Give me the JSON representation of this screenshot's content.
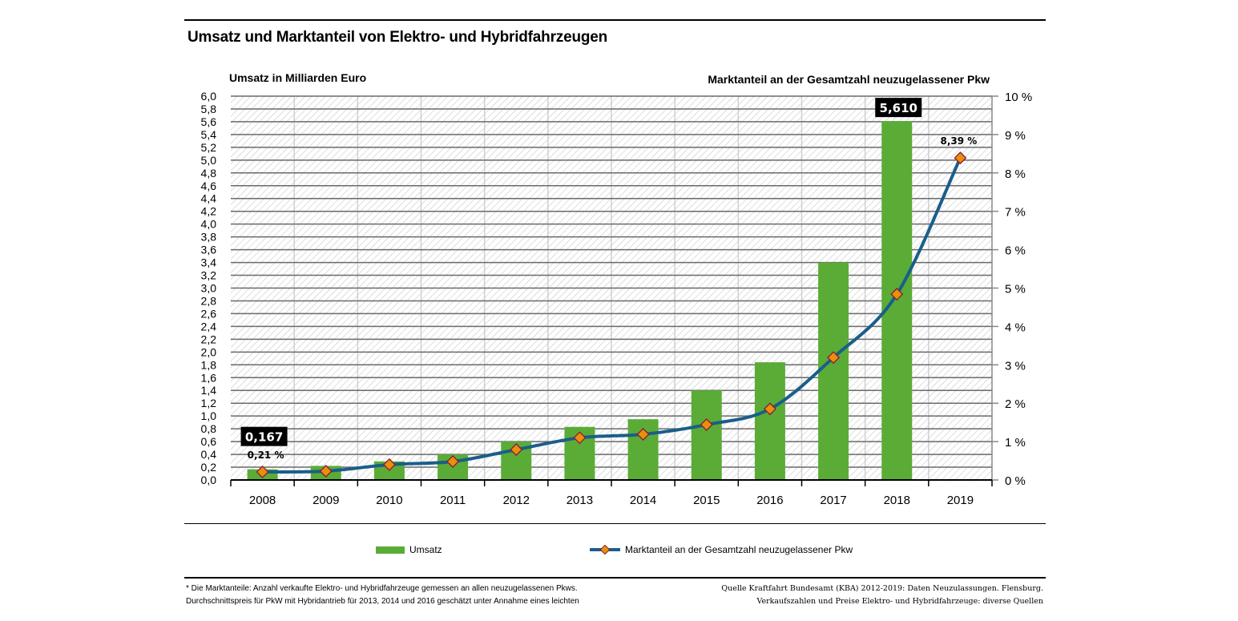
{
  "title": "Umsatz und Marktanteil von Elektro- und Hybridfahrzeugen",
  "chart_data": {
    "type": "bar+line",
    "title": "Umsatz und Marktanteil von Elektro- und Hybridfahrzeugen",
    "categories": [
      "2008",
      "2009",
      "2010",
      "2011",
      "2012",
      "2013",
      "2014",
      "2015",
      "2016",
      "2017",
      "2018",
      "2019"
    ],
    "left_axis": {
      "label": "Umsatz in Milliarden Euro",
      "range": [
        0,
        6.0
      ],
      "step": 0.2,
      "ticks": [
        "0,0",
        "0,2",
        "0,4",
        "0,6",
        "0,8",
        "1,0",
        "1,2",
        "1,4",
        "1,6",
        "1,8",
        "2,0",
        "2,2",
        "2,4",
        "2,6",
        "2,8",
        "3,0",
        "3,2",
        "3,4",
        "3,6",
        "3,8",
        "4,0",
        "4,2",
        "4,4",
        "4,6",
        "4,8",
        "5,0",
        "5,2",
        "5,4",
        "5,6",
        "5,8",
        "6,0"
      ]
    },
    "right_axis": {
      "label": "Marktanteil an der Gesamtzahl neuzugelassener Pkw",
      "range": [
        0,
        10
      ],
      "ticks": [
        "0 %",
        "1 %",
        "2 %",
        "3 %",
        "4 %",
        "5 %",
        "6 %",
        "7 %",
        "8 %",
        "9 %",
        "10 %"
      ]
    },
    "grid": true,
    "legend_position": "bottom",
    "series": [
      {
        "name": "Umsatz",
        "type": "bar",
        "axis": "left",
        "color": "#5aac37",
        "values": [
          0.167,
          0.22,
          0.29,
          0.4,
          0.6,
          0.83,
          0.95,
          1.4,
          1.84,
          3.4,
          5.61,
          null
        ]
      },
      {
        "name": "Marktanteil an der Gesamtzahl neuzugelassener Pkw",
        "type": "line",
        "axis": "right",
        "color": "#1a5e8a",
        "marker_color": "#e8900a",
        "values": [
          0.21,
          0.23,
          0.4,
          0.48,
          0.79,
          1.1,
          1.19,
          1.44,
          1.85,
          3.19,
          4.84,
          8.39
        ]
      }
    ],
    "annotations": [
      {
        "category": "2008",
        "series": "Umsatz",
        "text": "0,167"
      },
      {
        "category": "2018",
        "series": "Umsatz",
        "text": "5,610"
      },
      {
        "category": "2008",
        "series": "Marktanteil",
        "text": "0,21 %"
      },
      {
        "category": "2019",
        "series": "Marktanteil",
        "text": "8,39 %"
      }
    ]
  },
  "footnote": {
    "left": [
      "* Die Marktanteile: Anzahl verkaufte Elektro- und Hybridfahrzeuge gemessen an allen neuzugelassenen Pkws.",
      "Durchschnittspreis für PkW mit Hybridantrieb für 2013, 2014 und 2016 geschätzt unter Annahme eines leichten"
    ],
    "right": [
      "Quelle Kraftfahrt Bundesamt (KBA) 2012-2019: Daten Neuzulassungen. Flensburg.",
      "Verkaufszahlen und Preise Elektro- und Hybridfahrzeuge: diverse Quellen"
    ]
  }
}
